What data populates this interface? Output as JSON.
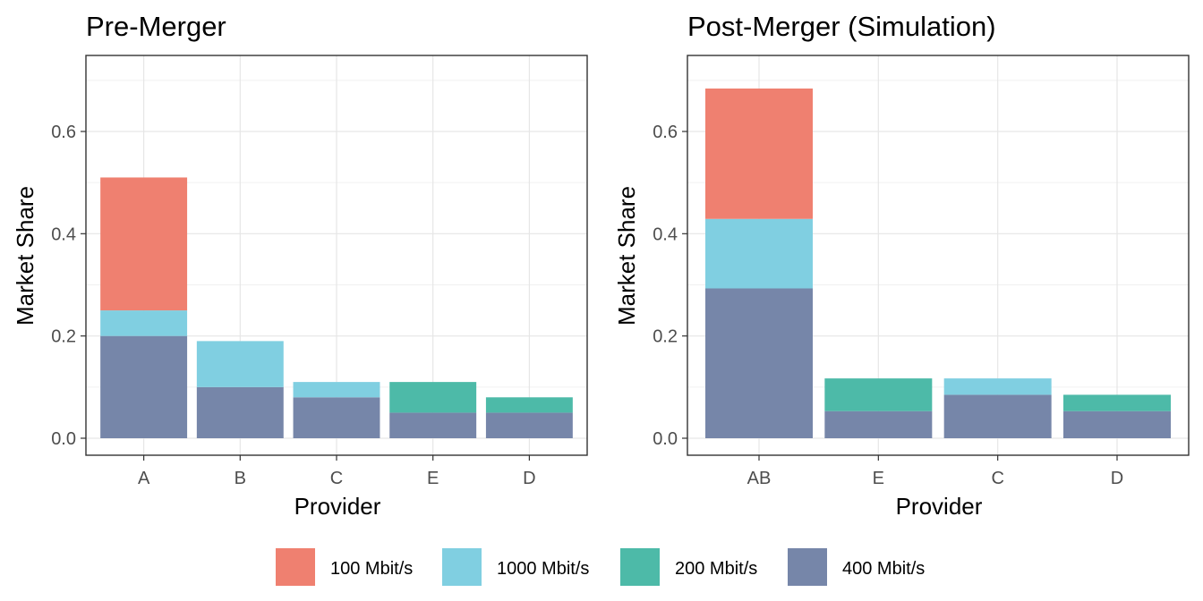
{
  "colors": {
    "100 Mbit/s": "#ef8070",
    "1000 Mbit/s": "#80cfe1",
    "200 Mbit/s": "#4dbaa8",
    "400 Mbit/s": "#7686a9"
  },
  "legend": {
    "items": [
      "100 Mbit/s",
      "1000 Mbit/s",
      "200 Mbit/s",
      "400 Mbit/s"
    ]
  },
  "chart_data": [
    {
      "type": "bar",
      "stacked": true,
      "title": "Pre-Merger",
      "xlabel": "Provider",
      "ylabel": "Market Share",
      "ylim": [
        0,
        0.72
      ],
      "yticks": [
        0.0,
        0.2,
        0.4,
        0.6
      ],
      "ytick_labels": [
        "0.0",
        "0.2",
        "0.4",
        "0.6"
      ],
      "grid": true,
      "categories": [
        "A",
        "B",
        "C",
        "E",
        "D"
      ],
      "series": [
        {
          "name": "400 Mbit/s",
          "values": [
            0.2,
            0.1,
            0.08,
            0.05,
            0.05
          ]
        },
        {
          "name": "200 Mbit/s",
          "values": [
            0,
            0,
            0,
            0.06,
            0.03
          ]
        },
        {
          "name": "1000 Mbit/s",
          "values": [
            0.05,
            0.09,
            0.03,
            0,
            0
          ]
        },
        {
          "name": "100 Mbit/s",
          "values": [
            0.26,
            0,
            0,
            0,
            0
          ]
        }
      ]
    },
    {
      "type": "bar",
      "stacked": true,
      "title": "Post-Merger (Simulation)",
      "xlabel": "Provider",
      "ylabel": "Market Share",
      "ylim": [
        0,
        0.72
      ],
      "yticks": [
        0.0,
        0.2,
        0.4,
        0.6
      ],
      "ytick_labels": [
        "0.0",
        "0.2",
        "0.4",
        "0.6"
      ],
      "grid": true,
      "categories": [
        "AB",
        "E",
        "C",
        "D"
      ],
      "series": [
        {
          "name": "400 Mbit/s",
          "values": [
            0.293,
            0.053,
            0.085,
            0.053
          ]
        },
        {
          "name": "200 Mbit/s",
          "values": [
            0,
            0.064,
            0,
            0.032
          ]
        },
        {
          "name": "1000 Mbit/s",
          "values": [
            0.136,
            0,
            0.032,
            0
          ]
        },
        {
          "name": "100 Mbit/s",
          "values": [
            0.255,
            0,
            0,
            0
          ]
        }
      ]
    }
  ]
}
